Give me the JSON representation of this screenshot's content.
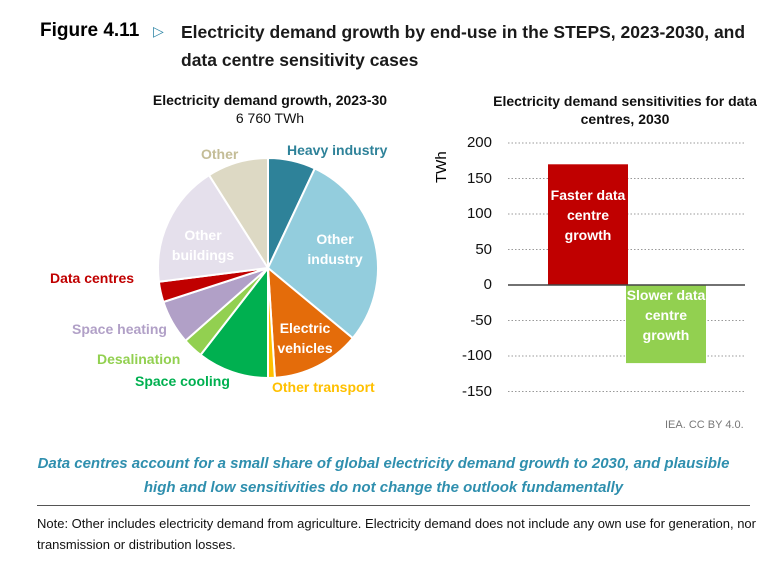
{
  "figure": {
    "number": "Figure 4.11",
    "title": "Electricity demand growth by end-use in the STEPS, 2023-2030, and data centre sensitivity cases",
    "takeaway": "Data centres account for a small share of global electricity demand growth to 2030, and plausible high and low sensitivities do not change the outlook fundamentally",
    "note": "Note: Other includes electricity demand from agriculture. Electricity demand does not include any own use for generation, nor transmission or distribution losses.",
    "credit": "IEA. CC BY 4.0."
  },
  "chart_data": [
    {
      "type": "pie",
      "title": "Electricity demand growth, 2023-30",
      "subtitle": "6 760 TWh",
      "unit": "share (%)",
      "slices": [
        {
          "label": "Heavy industry",
          "value": 7,
          "color": "#2e8299"
        },
        {
          "label": "Other industry",
          "value": 29,
          "color": "#93cddd"
        },
        {
          "label": "Electric vehicles",
          "value": 13,
          "color": "#e46c0a"
        },
        {
          "label": "Other transport",
          "value": 1,
          "color": "#ffc000"
        },
        {
          "label": "Space cooling",
          "value": 10.5,
          "color": "#00b050"
        },
        {
          "label": "Desalination",
          "value": 3,
          "color": "#92d050"
        },
        {
          "label": "Space heating",
          "value": 6.5,
          "color": "#b1a0c7"
        },
        {
          "label": "Data centres",
          "value": 3,
          "color": "#c00000"
        },
        {
          "label": "Other buildings",
          "value": 18,
          "color": "#e5e0ec"
        },
        {
          "label": "Other",
          "value": 9,
          "color": "#ddd9c4"
        }
      ]
    },
    {
      "type": "bar",
      "title": "Electricity demand sensitivities for data centres, 2030",
      "ylabel": "TWh",
      "ylim": [
        -150,
        200
      ],
      "yticks": [
        "200",
        "150",
        "100",
        "50",
        "0",
        "-50",
        "-100",
        "-150"
      ],
      "grid": true,
      "categories": [
        "Faster data centre growth",
        "Slower data centre growth"
      ],
      "values": [
        170,
        -110
      ],
      "colors": [
        "#c00000",
        "#92d050"
      ]
    }
  ]
}
